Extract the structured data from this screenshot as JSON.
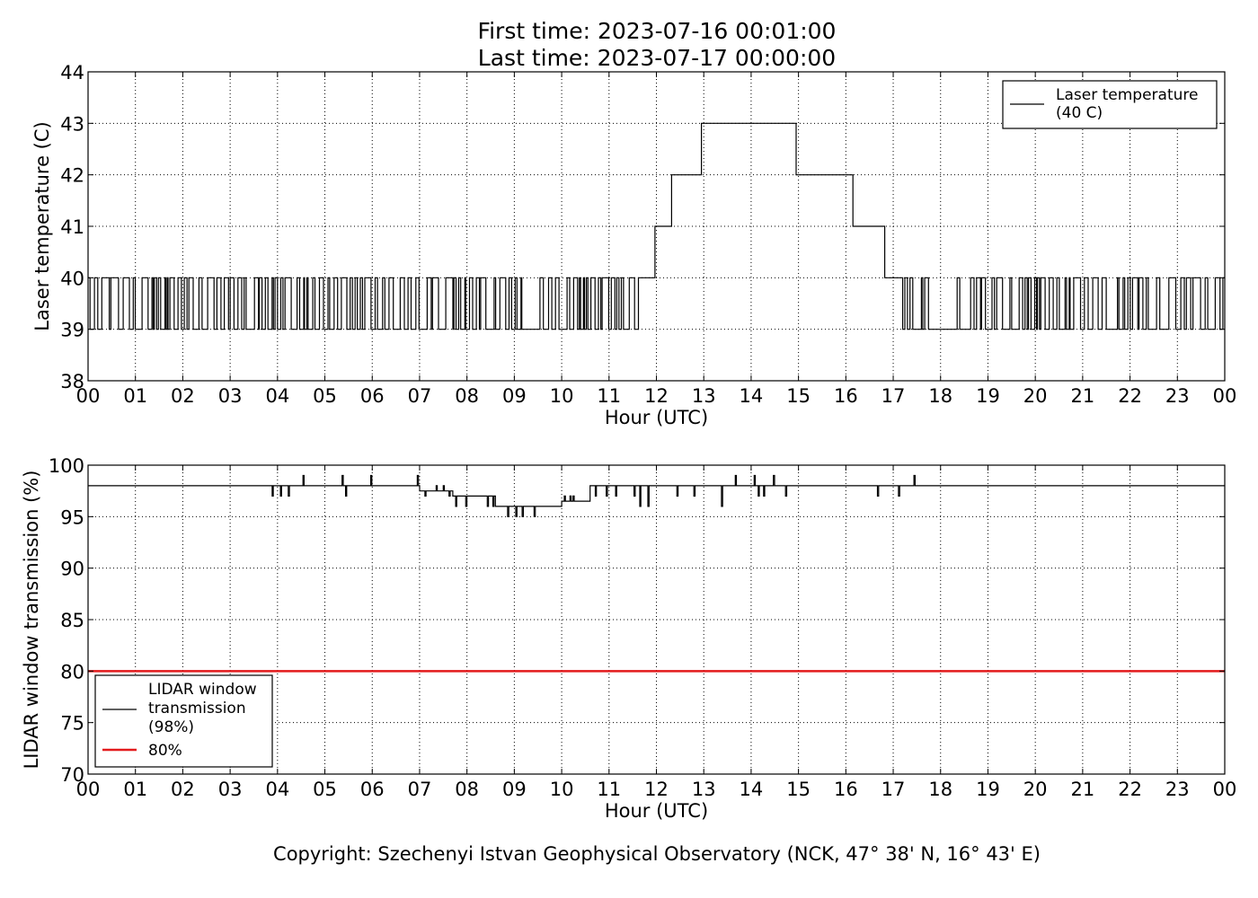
{
  "title": {
    "line1": "First time: 2023-07-16 00:01:00",
    "line2": "Last time: 2023-07-17 00:00:00"
  },
  "copyright": "Copyright: Szechenyi Istvan Geophysical Observatory (NCK, 47° 38' N, 16° 43' E)",
  "chart_data": [
    {
      "type": "line",
      "xlabel": "Hour (UTC)",
      "ylabel": "Laser temperature (C)",
      "xlim": [
        0,
        24
      ],
      "ylim": [
        38,
        44
      ],
      "xticks": [
        "00",
        "01",
        "02",
        "03",
        "04",
        "05",
        "06",
        "07",
        "08",
        "09",
        "10",
        "11",
        "12",
        "13",
        "14",
        "15",
        "16",
        "17",
        "18",
        "19",
        "20",
        "21",
        "22",
        "23",
        "00"
      ],
      "yticks": [
        "38",
        "39",
        "40",
        "41",
        "42",
        "43",
        "44"
      ],
      "grid": true,
      "legend_position": "top-right",
      "series": [
        {
          "name": "Laser temperature\n(40 C)",
          "color": "#000000",
          "description_ranges": [
            {
              "from": 0.0,
              "to": 11.62,
              "toggle_between": [
                39,
                40
              ]
            },
            {
              "from": 11.62,
              "to": 11.97,
              "value": 40
            },
            {
              "from": 11.97,
              "to": 12.32,
              "value": 41
            },
            {
              "from": 12.32,
              "to": 12.95,
              "value": 42
            },
            {
              "from": 12.95,
              "to": 14.95,
              "value": 43
            },
            {
              "from": 14.95,
              "to": 16.15,
              "value": 42
            },
            {
              "from": 16.15,
              "to": 16.82,
              "value": 41
            },
            {
              "from": 16.82,
              "to": 17.2,
              "value": 40
            },
            {
              "from": 17.2,
              "to": 17.75,
              "toggle_between": [
                39,
                40
              ]
            },
            {
              "from": 17.75,
              "to": 18.35,
              "value": 39
            },
            {
              "from": 18.35,
              "to": 24.0,
              "toggle_between": [
                39,
                40
              ]
            }
          ]
        }
      ]
    },
    {
      "type": "line",
      "xlabel": "Hour (UTC)",
      "ylabel": "LIDAR window transmission (%)",
      "xlim": [
        0,
        24
      ],
      "ylim": [
        70,
        100
      ],
      "xticks": [
        "00",
        "01",
        "02",
        "03",
        "04",
        "05",
        "06",
        "07",
        "08",
        "09",
        "10",
        "11",
        "12",
        "13",
        "14",
        "15",
        "16",
        "17",
        "18",
        "19",
        "20",
        "21",
        "22",
        "23",
        "00"
      ],
      "yticks": [
        "70",
        "75",
        "80",
        "85",
        "90",
        "95",
        "100"
      ],
      "grid": true,
      "legend_position": "bottom-left",
      "series": [
        {
          "name": "LIDAR window\ntransmission\n(98%)",
          "color": "#000000",
          "description_ranges": [
            {
              "from": 0.0,
              "to": 3.7,
              "value": 98
            },
            {
              "from": 3.7,
              "to": 7.0,
              "value": 98,
              "spikes": [
                99,
                97
              ]
            },
            {
              "from": 7.0,
              "to": 7.7,
              "value": 97.5,
              "spikes": [
                98,
                97
              ]
            },
            {
              "from": 7.7,
              "to": 8.6,
              "value": 97,
              "spikes": [
                96
              ]
            },
            {
              "from": 8.6,
              "to": 10.0,
              "value": 96,
              "spikes": [
                95
              ]
            },
            {
              "from": 10.0,
              "to": 10.6,
              "value": 96.5,
              "spikes": [
                97
              ]
            },
            {
              "from": 10.6,
              "to": 13.5,
              "value": 98,
              "spikes": [
                97,
                96
              ]
            },
            {
              "from": 13.5,
              "to": 18.1,
              "value": 98,
              "spikes": [
                99,
                97
              ]
            },
            {
              "from": 18.1,
              "to": 24.0,
              "value": 98
            }
          ]
        },
        {
          "name": "80%",
          "color": "#e31a1c",
          "constant": 80
        }
      ]
    }
  ]
}
